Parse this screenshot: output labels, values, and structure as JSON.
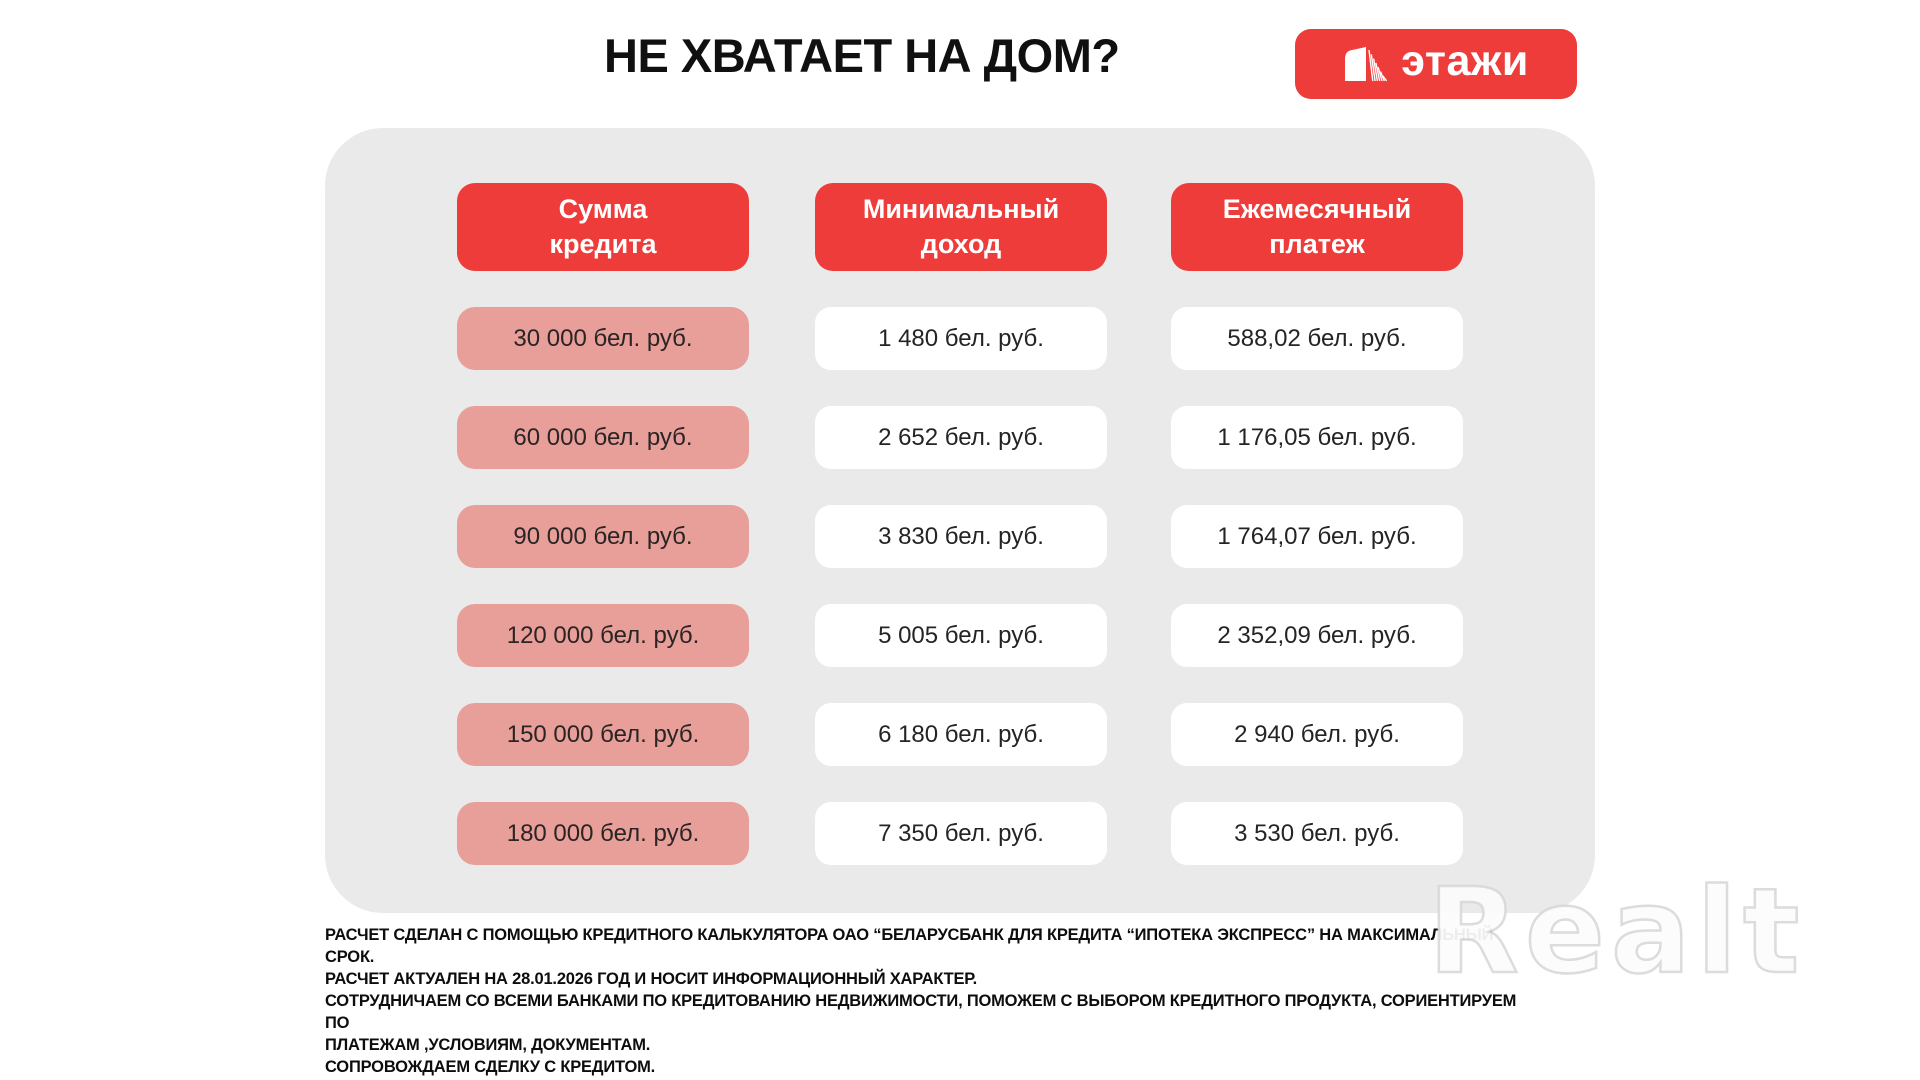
{
  "page": {
    "title": "НЕ ХВАТАЕТ НА ДОМ?",
    "watermark": "Realt"
  },
  "logo": {
    "text": "этажи",
    "icon": "building-icon",
    "background": "#ee3c3a"
  },
  "colors": {
    "accent_red": "#ee3c3a",
    "credit_pink": "#e89e99",
    "panel_gray": "#eaeaea",
    "cell_white": "#ffffff",
    "text_black": "#101010"
  },
  "table": {
    "header_lines": [
      [
        "Сумма",
        "кредита"
      ],
      [
        "Минимальный",
        "доход"
      ],
      [
        "Ежемесячный",
        "платеж"
      ]
    ]
  },
  "chart_data": {
    "type": "table",
    "title": "НЕ ХВАТАЕТ НА ДОМ?",
    "columns": [
      "Сумма кредита",
      "Минимальный доход",
      "Ежемесячный платеж"
    ],
    "rows": [
      [
        "30 000 бел. руб.",
        "1 480 бел. руб.",
        "588,02 бел. руб."
      ],
      [
        "60 000 бел. руб.",
        "2 652 бел. руб.",
        "1 176,05 бел. руб."
      ],
      [
        "90 000 бел. руб.",
        "3 830 бел. руб.",
        "1 764,07 бел. руб."
      ],
      [
        "120 000 бел. руб.",
        "5 005 бел. руб.",
        "2 352,09 бел. руб."
      ],
      [
        "150 000 бел. руб.",
        "6 180 бел. руб.",
        "2 940 бел. руб."
      ],
      [
        "180 000 бел. руб.",
        "7 350 бел. руб.",
        "3 530 бел. руб."
      ]
    ],
    "currency_unit": "бел. руб."
  },
  "footnote": {
    "lines": [
      "РАСЧЕТ СДЕЛАН С ПОМОЩЬЮ КРЕДИТНОГО КАЛЬКУЛЯТОРА ОАО “БЕЛАРУСБАНК ДЛЯ КРЕДИТА “ИПОТЕКА ЭКСПРЕСС” НА МАКСИМАЛЬНЫЙ СРОК.",
      "РАСЧЕТ АКТУАЛЕН НА 28.01.2026 ГОД И НОСИТ ИНФОРМАЦИОННЫЙ ХАРАКТЕР.",
      "СОТРУДНИЧАЕМ СО ВСЕМИ БАНКАМИ ПО КРЕДИТОВАНИЮ НЕДВИЖИМОСТИ, ПОМОЖЕМ С ВЫБОРОМ КРЕДИТНОГО ПРОДУКТА, СОРИЕНТИРУЕМ ПО",
      "ПЛАТЕЖАМ ,УСЛОВИЯМ, ДОКУМЕНТАМ.",
      "СОПРОВОЖДАЕМ СДЕЛКУ С КРЕДИТОМ."
    ]
  }
}
